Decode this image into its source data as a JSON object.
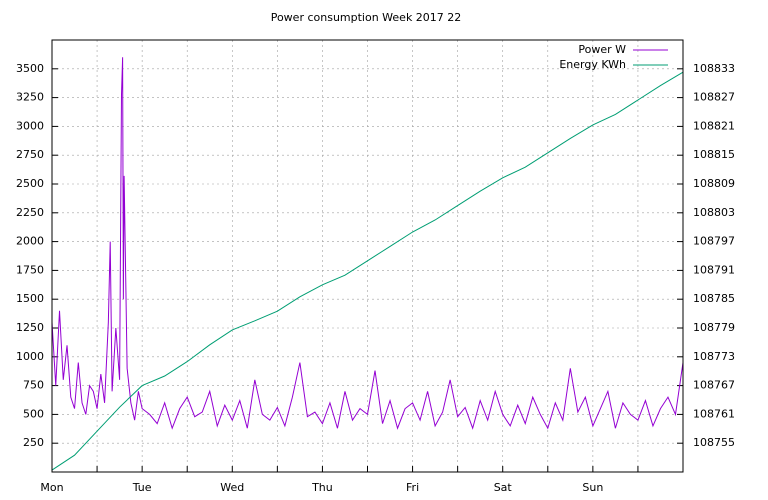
{
  "chart_data": {
    "type": "line",
    "title": "Power consumption Week 2017 22",
    "xlim": [
      0,
      168
    ],
    "xticks": [
      {
        "value": 0,
        "label": "Mon"
      },
      {
        "value": 24,
        "label": "Tue"
      },
      {
        "value": 48,
        "label": "Wed"
      },
      {
        "value": 72,
        "label": "Thu"
      },
      {
        "value": 96,
        "label": "Fri"
      },
      {
        "value": 120,
        "label": "Sat"
      },
      {
        "value": 144,
        "label": "Sun"
      }
    ],
    "xminorticks": [
      12,
      36,
      60,
      84,
      108,
      132,
      156
    ],
    "ylim": [
      0,
      3750
    ],
    "yticks": [
      250,
      500,
      750,
      1000,
      1250,
      1500,
      1750,
      2000,
      2250,
      2500,
      2750,
      3000,
      3250,
      3500
    ],
    "y2lim": [
      108749,
      108839
    ],
    "y2ticks": [
      108755,
      108761,
      108767,
      108773,
      108779,
      108785,
      108791,
      108797,
      108803,
      108809,
      108815,
      108821,
      108827,
      108833
    ],
    "grid": true,
    "legend": "top-right",
    "series": [
      {
        "name": "Power W",
        "color": "#9400d3",
        "x": [
          0,
          1,
          2,
          3,
          4,
          5,
          6,
          7,
          8,
          9,
          10,
          11,
          12,
          13,
          14,
          15,
          15.5,
          16,
          17,
          18,
          18.5,
          18.8,
          19,
          19.2,
          20,
          21,
          22,
          23,
          24,
          26,
          28,
          30,
          32,
          34,
          36,
          38,
          40,
          42,
          44,
          46,
          48,
          50,
          52,
          54,
          56,
          58,
          60,
          62,
          64,
          66,
          68,
          70,
          72,
          74,
          76,
          78,
          80,
          82,
          84,
          86,
          88,
          90,
          92,
          94,
          96,
          98,
          100,
          102,
          104,
          106,
          108,
          110,
          112,
          114,
          116,
          118,
          120,
          122,
          124,
          126,
          128,
          130,
          132,
          134,
          136,
          138,
          140,
          142,
          144,
          146,
          148,
          150,
          152,
          154,
          156,
          158,
          160,
          162,
          164,
          166,
          168
        ],
        "values": [
          1300,
          750,
          1400,
          800,
          1100,
          650,
          550,
          950,
          600,
          500,
          750,
          700,
          550,
          850,
          600,
          1300,
          2000,
          700,
          1250,
          800,
          3270,
          3600,
          1500,
          2570,
          900,
          600,
          450,
          700,
          550,
          500,
          420,
          600,
          380,
          550,
          650,
          480,
          520,
          700,
          400,
          580,
          450,
          620,
          380,
          800,
          500,
          450,
          560,
          400,
          650,
          950,
          480,
          520,
          420,
          600,
          380,
          700,
          450,
          550,
          500,
          880,
          420,
          620,
          380,
          550,
          600,
          450,
          700,
          400,
          520,
          800,
          480,
          560,
          380,
          620,
          450,
          700,
          500,
          400,
          580,
          420,
          650,
          500,
          380,
          600,
          450,
          900,
          520,
          650,
          400,
          550,
          700,
          380,
          600,
          500,
          450,
          620,
          400,
          550,
          650,
          500,
          950
        ]
      },
      {
        "name": "Energy KWh",
        "color": "#009e73",
        "axis": "y2",
        "x": [
          0,
          6,
          12,
          18,
          24,
          30,
          36,
          42,
          48,
          54,
          60,
          66,
          72,
          78,
          84,
          90,
          96,
          102,
          108,
          114,
          120,
          126,
          132,
          138,
          144,
          150,
          156,
          162,
          168
        ],
        "values": [
          108749.4,
          108752.5,
          108757.5,
          108762.5,
          108767,
          108769,
          108772,
          108775.5,
          108778.6,
          108780.5,
          108782.5,
          108785.5,
          108788,
          108790,
          108793,
          108796,
          108799,
          108801.5,
          108804.5,
          108807.5,
          108810.3,
          108812.5,
          108815.5,
          108818.5,
          108821.3,
          108823.5,
          108826.5,
          108829.5,
          108832.3
        ]
      }
    ]
  }
}
